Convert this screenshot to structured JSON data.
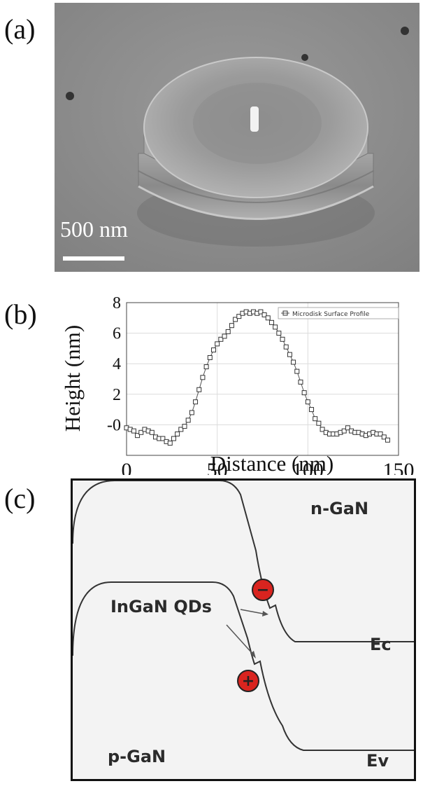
{
  "panels": {
    "a": {
      "label": "(a)",
      "scale_bar_text": "500 nm"
    },
    "b": {
      "label": "(b)"
    },
    "c": {
      "label": "(c)",
      "n_region": "n-GaN",
      "p_region": "p-GaN",
      "conduction_band": "Ec",
      "valence_band": "Ev",
      "quantum_dots": "InGaN QDs",
      "electron_symbol": "−",
      "hole_symbol": "+"
    }
  },
  "chart_data": {
    "type": "scatter",
    "xlabel": "Distance (nm)",
    "ylabel": "Height (nm)",
    "xlim": [
      0,
      150
    ],
    "ylim": [
      -2,
      8
    ],
    "xticks": [
      "0",
      "50",
      "100",
      "150"
    ],
    "yticks": [
      "-0",
      "2",
      "4",
      "6",
      "8"
    ],
    "ytick_values": [
      0,
      2,
      4,
      6,
      8
    ],
    "xtick_values": [
      0,
      50,
      100,
      150
    ],
    "grid": true,
    "legend_position": "top-right",
    "series": [
      {
        "name": "Microdisk Surface Profile",
        "marker": "square-open",
        "line": true,
        "color": "#333333",
        "x": [
          0,
          2,
          4,
          6,
          8,
          10,
          12,
          14,
          16,
          18,
          20,
          22,
          24,
          26,
          28,
          30,
          32,
          34,
          36,
          38,
          40,
          42,
          44,
          46,
          48,
          50,
          52,
          54,
          56,
          58,
          60,
          62,
          64,
          66,
          68,
          70,
          72,
          74,
          76,
          78,
          80,
          82,
          84,
          86,
          88,
          90,
          92,
          94,
          96,
          98,
          100,
          102,
          104,
          106,
          108,
          110,
          112,
          114,
          116,
          118,
          120,
          122,
          124,
          126,
          128,
          130,
          132,
          134,
          136,
          138,
          140,
          142,
          144
        ],
        "y": [
          -0.2,
          -0.3,
          -0.4,
          -0.7,
          -0.5,
          -0.3,
          -0.4,
          -0.5,
          -0.8,
          -0.9,
          -0.9,
          -1.1,
          -1.2,
          -0.9,
          -0.6,
          -0.3,
          -0.1,
          0.3,
          0.8,
          1.5,
          2.3,
          3.1,
          3.8,
          4.4,
          4.9,
          5.3,
          5.6,
          5.8,
          6.1,
          6.5,
          6.9,
          7.1,
          7.3,
          7.4,
          7.3,
          7.4,
          7.3,
          7.4,
          7.2,
          7.0,
          6.7,
          6.4,
          6.0,
          5.6,
          5.1,
          4.6,
          4.1,
          3.5,
          2.8,
          2.1,
          1.5,
          1.0,
          0.4,
          0.1,
          -0.3,
          -0.5,
          -0.6,
          -0.6,
          -0.6,
          -0.5,
          -0.4,
          -0.2,
          -0.4,
          -0.5,
          -0.5,
          -0.6,
          -0.7,
          -0.6,
          -0.5,
          -0.6,
          -0.6,
          -0.8,
          -1.0
        ]
      }
    ]
  }
}
